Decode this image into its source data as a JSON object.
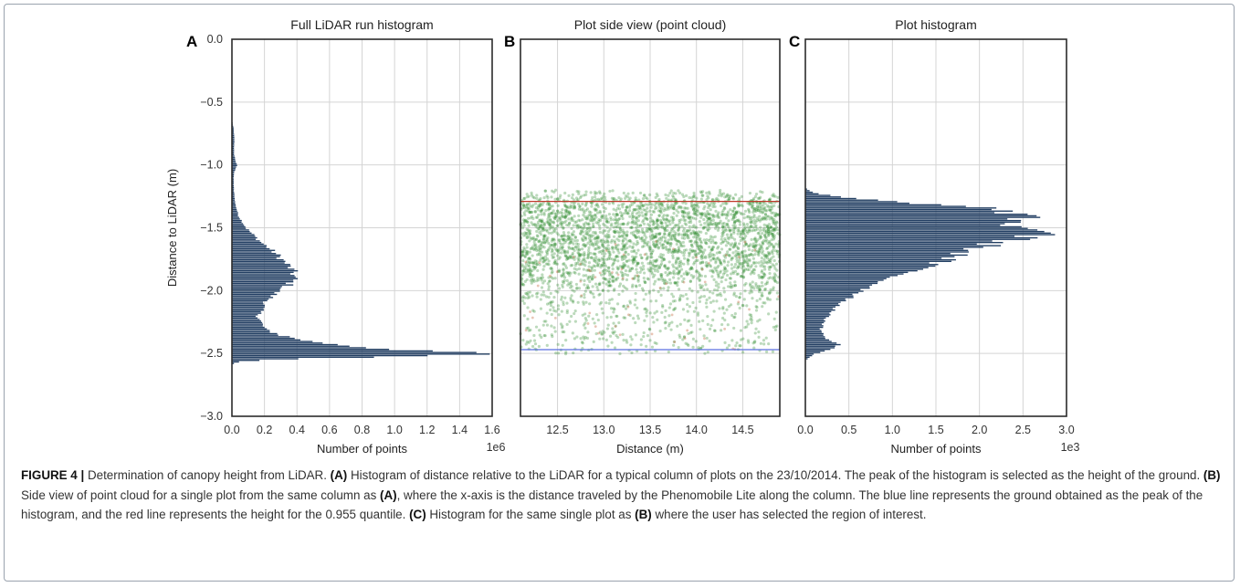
{
  "figure": {
    "panels": [
      {
        "label": "A",
        "title": "Full LiDAR run histogram",
        "xlabel": "Number of points",
        "offset": "1e6"
      },
      {
        "label": "B",
        "title": "Plot side view (point cloud)",
        "xlabel": "Distance (m)",
        "offset": ""
      },
      {
        "label": "C",
        "title": "Plot histogram",
        "xlabel": "Number of points",
        "offset": "1e3"
      }
    ],
    "ylabel": "Distance to LiDAR (m)"
  },
  "colors": {
    "bars": "#233f63",
    "points": "#2e8b2e",
    "ground_line": "#5a6fe0",
    "quantile_line": "#c0392b",
    "grid": "#d4d4d4"
  },
  "chart_data": [
    {
      "type": "bar",
      "orientation": "horizontal",
      "title": "Full LiDAR run histogram",
      "xlabel": "Number of points",
      "ylabel": "Distance to LiDAR (m)",
      "x_multiplier": "1e6",
      "xlim": [
        0,
        1.6
      ],
      "ylim": [
        -3.0,
        0.0
      ],
      "xticks": [
        "0.0",
        "0.2",
        "0.4",
        "0.6",
        "0.8",
        "1.0",
        "1.2",
        "1.4",
        "1.6"
      ],
      "yticks": [
        "0.0",
        "-0.5",
        "-1.0",
        "-1.5",
        "-2.0",
        "-2.5",
        "-3.0"
      ],
      "grid": true,
      "profile": [
        [
          -0.65,
          0
        ],
        [
          -0.7,
          0.01
        ],
        [
          -0.8,
          0.015
        ],
        [
          -0.9,
          0.012
        ],
        [
          -0.95,
          0.02
        ],
        [
          -1.0,
          0.03
        ],
        [
          -1.05,
          0.015
        ],
        [
          -1.1,
          0.01
        ],
        [
          -1.2,
          0.012
        ],
        [
          -1.3,
          0.02
        ],
        [
          -1.4,
          0.04
        ],
        [
          -1.5,
          0.09
        ],
        [
          -1.6,
          0.17
        ],
        [
          -1.7,
          0.27
        ],
        [
          -1.8,
          0.35
        ],
        [
          -1.85,
          0.38
        ],
        [
          -1.9,
          0.38
        ],
        [
          -1.95,
          0.35
        ],
        [
          -2.0,
          0.28
        ],
        [
          -2.1,
          0.2
        ],
        [
          -2.2,
          0.16
        ],
        [
          -2.3,
          0.2
        ],
        [
          -2.35,
          0.3
        ],
        [
          -2.4,
          0.48
        ],
        [
          -2.45,
          0.85
        ],
        [
          -2.48,
          1.3
        ],
        [
          -2.5,
          1.53
        ],
        [
          -2.52,
          1.0
        ],
        [
          -2.54,
          0.3
        ],
        [
          -2.56,
          0.05
        ],
        [
          -2.58,
          0
        ]
      ]
    },
    {
      "type": "scatter",
      "title": "Plot side view (point cloud)",
      "xlabel": "Distance (m)",
      "xlim": [
        12.1,
        14.9
      ],
      "ylim": [
        -3.0,
        0.0
      ],
      "xticks": [
        "12.5",
        "13.0",
        "13.5",
        "14.0",
        "14.5"
      ],
      "grid": true,
      "point_density_profile": [
        [
          -1.2,
          0.2
        ],
        [
          -1.3,
          0.9
        ],
        [
          -1.4,
          1.0
        ],
        [
          -1.5,
          1.0
        ],
        [
          -1.6,
          1.0
        ],
        [
          -1.7,
          0.95
        ],
        [
          -1.8,
          0.85
        ],
        [
          -1.9,
          0.6
        ],
        [
          -2.0,
          0.35
        ],
        [
          -2.1,
          0.25
        ],
        [
          -2.2,
          0.2
        ],
        [
          -2.3,
          0.18
        ],
        [
          -2.4,
          0.22
        ],
        [
          -2.5,
          0.15
        ]
      ],
      "ground_line_y": -2.47,
      "quantile_line_y": -1.29
    },
    {
      "type": "bar",
      "orientation": "horizontal",
      "title": "Plot histogram",
      "xlabel": "Number of points",
      "x_multiplier": "1e3",
      "xlim": [
        0,
        3.0
      ],
      "ylim": [
        -3.0,
        0.0
      ],
      "xticks": [
        "0.0",
        "0.5",
        "1.0",
        "1.5",
        "2.0",
        "2.5",
        "3.0"
      ],
      "grid": true,
      "profile": [
        [
          -1.18,
          0
        ],
        [
          -1.22,
          0.1
        ],
        [
          -1.26,
          0.5
        ],
        [
          -1.3,
          1.3
        ],
        [
          -1.34,
          2.1
        ],
        [
          -1.38,
          2.4
        ],
        [
          -1.42,
          2.5
        ],
        [
          -1.46,
          2.3
        ],
        [
          -1.5,
          2.55
        ],
        [
          -1.53,
          2.9
        ],
        [
          -1.56,
          2.6
        ],
        [
          -1.6,
          2.3
        ],
        [
          -1.65,
          2.0
        ],
        [
          -1.7,
          1.8
        ],
        [
          -1.75,
          1.6
        ],
        [
          -1.8,
          1.4
        ],
        [
          -1.85,
          1.2
        ],
        [
          -1.9,
          0.95
        ],
        [
          -2.0,
          0.65
        ],
        [
          -2.1,
          0.4
        ],
        [
          -2.2,
          0.25
        ],
        [
          -2.3,
          0.18
        ],
        [
          -2.35,
          0.2
        ],
        [
          -2.4,
          0.3
        ],
        [
          -2.43,
          0.4
        ],
        [
          -2.46,
          0.3
        ],
        [
          -2.5,
          0.1
        ],
        [
          -2.55,
          0
        ]
      ]
    }
  ],
  "caption": {
    "figure_label": "FIGURE 4 |",
    "lead": " Determination of canopy height from LiDAR. ",
    "a_label": "(A)",
    "a_text": " Histogram of distance relative to the LiDAR for a typical column of plots on the 23/10/2014. The peak of the histogram is selected as the height of the ground. ",
    "b_label": "(B)",
    "b_text1": " Side view of point cloud for a single plot from the same column as ",
    "b_ref": "(A)",
    "b_text2": ", where the x-axis is the distance traveled by the Phenomobile Lite along the column. The blue line represents the ground obtained as the peak of the histogram, and the red line represents the height for the 0.955 quantile. ",
    "c_label": "(C)",
    "c_text1": " Histogram for the same single plot as ",
    "c_ref": "(B)",
    "c_text2": " where the user has selected the region of interest."
  }
}
